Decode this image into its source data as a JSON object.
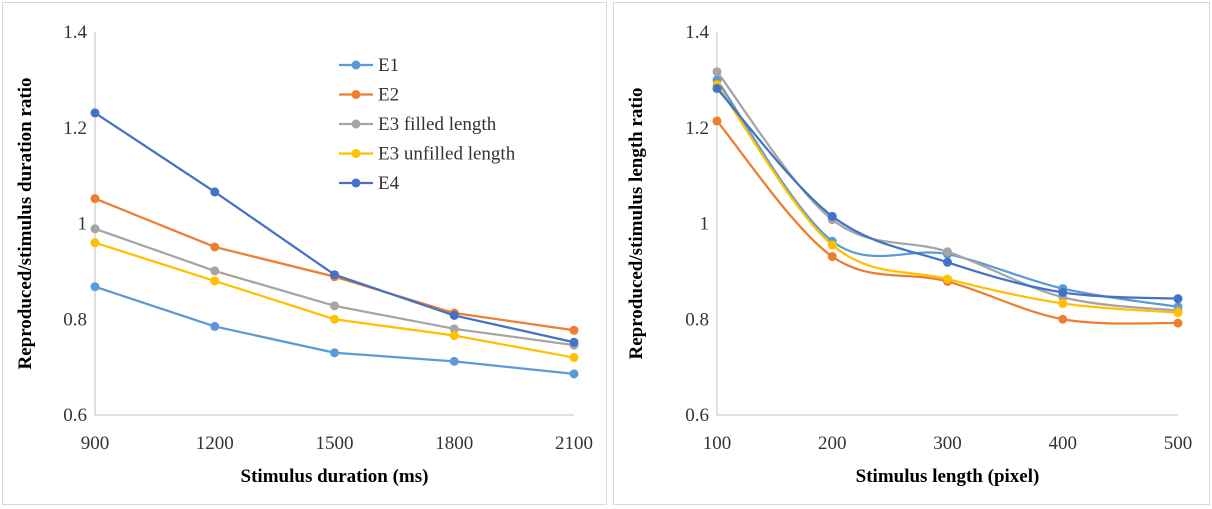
{
  "chart_data": [
    {
      "type": "line",
      "xlabel": "Stimulus duration (ms)",
      "ylabel": "Reproduced/stimulus duration ratio",
      "x": [
        900,
        1200,
        1500,
        1800,
        2100
      ],
      "x_ticks": [
        "900",
        "1200",
        "1500",
        "1800",
        "2100"
      ],
      "y_ticks": [
        "0.6",
        "0.8",
        "1",
        "1.2",
        "1.4"
      ],
      "ylim": [
        0.6,
        1.4
      ],
      "xlim": [
        900,
        2100
      ],
      "grid": false,
      "smooth": false,
      "legend_position": "top-center",
      "series": [
        {
          "name": "E1",
          "color": "#5B9BD5",
          "values": [
            0.868,
            0.785,
            0.73,
            0.712,
            0.686
          ]
        },
        {
          "name": "E2",
          "color": "#ED7D31",
          "values": [
            1.052,
            0.951,
            0.889,
            0.813,
            0.777
          ]
        },
        {
          "name": "E3 filled length",
          "color": "#A5A5A5",
          "values": [
            0.989,
            0.901,
            0.828,
            0.78,
            0.746
          ]
        },
        {
          "name": "E3 unfilled length",
          "color": "#FFC000",
          "values": [
            0.96,
            0.88,
            0.8,
            0.766,
            0.72
          ]
        },
        {
          "name": "E4",
          "color": "#4472C4",
          "values": [
            1.231,
            1.066,
            0.893,
            0.808,
            0.752
          ]
        }
      ]
    },
    {
      "type": "line",
      "xlabel": "Stimulus length (pixel)",
      "ylabel": "Reproduced/stimulus  length ratio",
      "x": [
        100,
        200,
        300,
        400,
        500
      ],
      "x_ticks": [
        "100",
        "200",
        "300",
        "400",
        "500"
      ],
      "y_ticks": [
        "0.6",
        "0.8",
        "1",
        "1.2",
        "1.4"
      ],
      "ylim": [
        0.6,
        1.4
      ],
      "xlim": [
        100,
        500
      ],
      "grid": false,
      "smooth": true,
      "series": [
        {
          "name": "E1",
          "color": "#5B9BD5",
          "values": [
            1.3,
            0.963,
            0.936,
            0.864,
            0.826
          ]
        },
        {
          "name": "E2",
          "color": "#ED7D31",
          "values": [
            1.214,
            0.931,
            0.879,
            0.8,
            0.792
          ]
        },
        {
          "name": "E3 filled length",
          "color": "#A5A5A5",
          "values": [
            1.317,
            1.008,
            0.941,
            0.846,
            0.818
          ]
        },
        {
          "name": "E3 unfilled length",
          "color": "#FFC000",
          "values": [
            1.29,
            0.955,
            0.884,
            0.833,
            0.814
          ]
        },
        {
          "name": "E4",
          "color": "#4472C4",
          "values": [
            1.282,
            1.015,
            0.919,
            0.856,
            0.843
          ]
        }
      ]
    }
  ]
}
